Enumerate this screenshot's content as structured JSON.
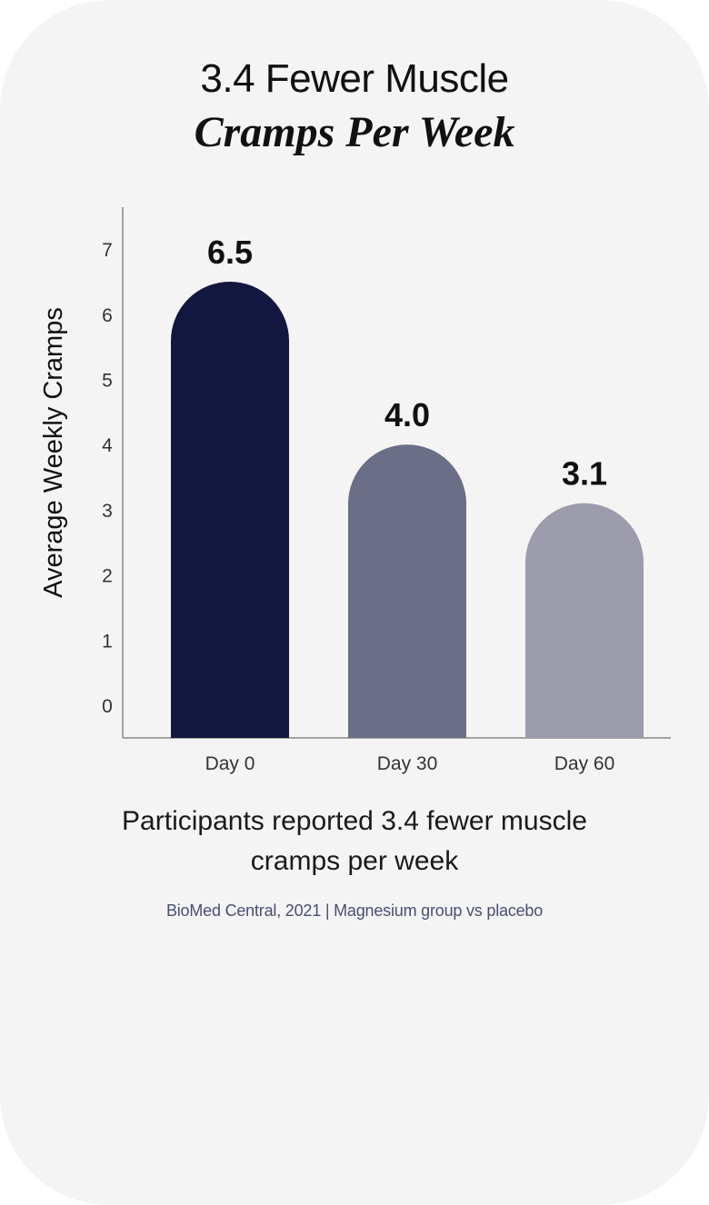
{
  "title_line1": "3.4 Fewer Muscle",
  "title_line2": "Cramps Per Week",
  "caption": "Participants reported 3.4 fewer muscle cramps per week",
  "source": "BioMed Central, 2021 | Magnesium group vs placebo",
  "chart_data": {
    "type": "bar",
    "categories": [
      "Day 0",
      "Day 30",
      "Day 60"
    ],
    "values": [
      6.5,
      4.0,
      3.1
    ],
    "value_labels": [
      "6.5",
      "4.0",
      "3.1"
    ],
    "ylabel": "Average Weekly Cramps",
    "xlabel": "",
    "yticks": [
      0,
      1,
      2,
      3,
      4,
      5,
      6,
      7
    ],
    "bar_colors": [
      "#13173f",
      "#6b6e87",
      "#9c9cac"
    ],
    "axis_color": "#888888",
    "grid": false
  }
}
